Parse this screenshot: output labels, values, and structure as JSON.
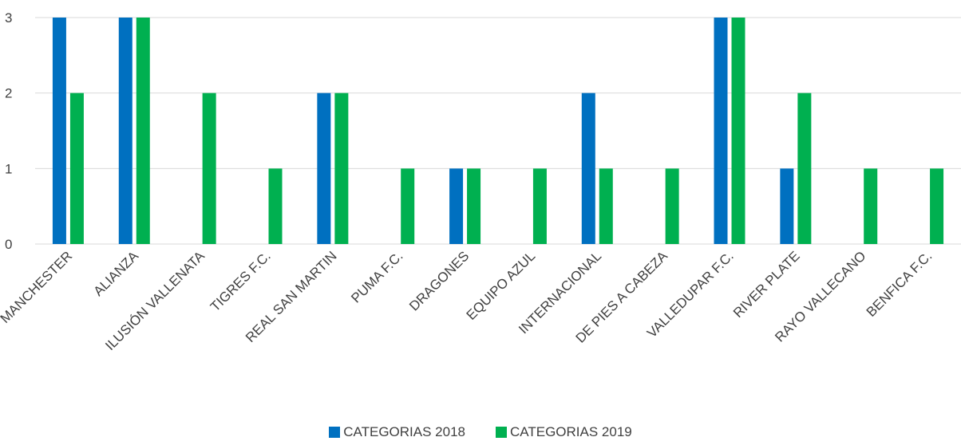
{
  "chart_data": {
    "type": "bar",
    "categories": [
      "MANCHESTER",
      "ALIANZA",
      "ILUSIÓN VALLENATA",
      "TIGRES F.C.",
      "REAL SAN MARTIN",
      "PUMA F.C.",
      "DRAGONES",
      "EQUIPO AZUL",
      "INTERNACIONAL",
      "DE PIES A CABEZA",
      "VALLEDUPAR F.C.",
      "RIVER PLATE",
      "RAYO VALLECANO",
      "BENFICA F.C."
    ],
    "series": [
      {
        "name": "CATEGORIAS 2018",
        "color": "#0070C0",
        "values": [
          3,
          3,
          0,
          0,
          2,
          0,
          1,
          0,
          2,
          0,
          3,
          1,
          0,
          0
        ]
      },
      {
        "name": "CATEGORIAS 2019",
        "color": "#00B050",
        "values": [
          2,
          3,
          2,
          1,
          2,
          1,
          1,
          1,
          1,
          1,
          3,
          2,
          1,
          1
        ]
      }
    ],
    "yticks": [
      "0",
      "1",
      "2",
      "3"
    ],
    "ylim": [
      0,
      3
    ],
    "grid": true,
    "legend": "bottom"
  }
}
